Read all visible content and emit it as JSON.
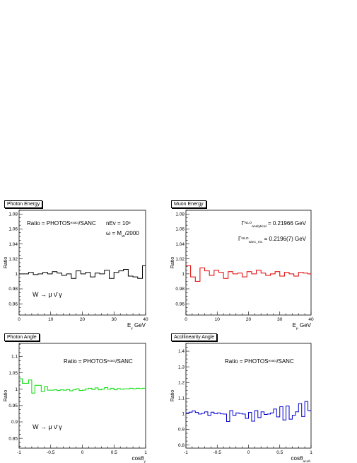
{
  "chart_data": [
    {
      "type": "line",
      "title": "Photon Energy",
      "xlabel": "E",
      "xlabel_sub": "γ",
      "xlabel_unit": " GeV",
      "ylabel": "Ratio",
      "xlim": [
        0,
        40
      ],
      "ylim": [
        0.945,
        1.085
      ],
      "xticks": [
        0,
        10,
        20,
        30,
        40
      ],
      "xtick_labels": [
        "0",
        "10",
        "20",
        "30",
        "40"
      ],
      "yticks": [
        0.96,
        0.98,
        1.0,
        1.02,
        1.04,
        1.06,
        1.08
      ],
      "ytick_labels": [
        "0.96",
        "0.98",
        "1",
        "1.02",
        "1.04",
        "1.06",
        "1.08"
      ],
      "color": "#000000",
      "bin_edges": [
        0,
        1.5,
        3,
        4.5,
        6,
        7.5,
        9,
        10.5,
        12,
        13.5,
        15,
        16.5,
        18,
        19.5,
        21,
        22.5,
        24,
        25.5,
        27,
        28.5,
        30,
        31.5,
        33,
        34.5,
        36,
        37.5,
        39,
        40
      ],
      "values": [
        1.0,
        1.0,
        1.002,
        0.999,
        1.0,
        1.002,
        1.0,
        1.003,
        1.001,
        0.998,
        1.0,
        0.994,
        1.004,
        1.0,
        1.002,
        0.996,
        1.001,
        1.0,
        1.005,
        0.994,
        1.002,
        1.004,
        1.006,
        0.997,
        0.996,
        0.994,
        1.011
      ],
      "annotations": [
        {
          "parts": [
            {
              "t": "Ratio = PHOTOS"
            },
            {
              "t": "exact",
              "sup": true
            },
            {
              "t": "/SANC"
            }
          ]
        },
        {
          "parts": [
            {
              "t": "nEv = 10"
            },
            {
              "t": "8",
              "sup": true
            }
          ]
        },
        {
          "parts": [
            {
              "t": "ω = M"
            },
            {
              "t": "W",
              "sub": true
            },
            {
              "t": "/2000"
            }
          ]
        },
        {
          "parts": [
            {
              "t": "W → μ ν̄ γ"
            }
          ]
        }
      ]
    },
    {
      "type": "line",
      "title": "Muon Energy",
      "xlabel": "E",
      "xlabel_sub": "μ",
      "xlabel_unit": " GeV",
      "ylabel": "Ratio",
      "xlim": [
        0,
        40
      ],
      "ylim": [
        0.945,
        1.085
      ],
      "xticks": [
        0,
        10,
        20,
        30,
        40
      ],
      "xtick_labels": [
        "0",
        "10",
        "20",
        "30",
        "40"
      ],
      "yticks": [
        0.96,
        0.98,
        1.0,
        1.02,
        1.04,
        1.06,
        1.08
      ],
      "ytick_labels": [
        "0.96",
        "0.98",
        "1",
        "1.02",
        "1.04",
        "1.06",
        "1.08"
      ],
      "color": "#e00000",
      "bin_edges": [
        0,
        1.5,
        3,
        4.5,
        6,
        7.5,
        9,
        10.5,
        12,
        13.5,
        15,
        16.5,
        18,
        19.5,
        21,
        22.5,
        24,
        25.5,
        27,
        28.5,
        30,
        31.5,
        33,
        34.5,
        36,
        37.5,
        39,
        40
      ],
      "values": [
        1.011,
        0.996,
        0.99,
        1.008,
        1.004,
        0.998,
        1.005,
        1.002,
        0.994,
        1.003,
        1.0,
        1.001,
        0.996,
        1.003,
        1.0,
        1.005,
        1.001,
        0.998,
        1.0,
        1.003,
        0.997,
        1.002,
        1.0,
        0.997,
        1.002,
        1.001,
        1.0
      ],
      "annotations": [
        {
          "parts": [
            {
              "t": "Γ"
            },
            {
              "t": "NLO",
              "sup": true
            },
            {
              "t": "analytical",
              "sub": true
            },
            {
              "t": " = 0.21966 GeV"
            }
          ]
        },
        {
          "parts": [
            {
              "t": "Γ"
            },
            {
              "t": "NLO",
              "sup": true
            },
            {
              "t": "sanc_mc",
              "sub": true
            },
            {
              "t": " = 0.2196(7) GeV"
            }
          ]
        }
      ]
    },
    {
      "type": "line",
      "title": "Photon Angle",
      "xlabel": "cosθ",
      "xlabel_sub": "γ",
      "xlabel_unit": "",
      "ylabel": "Ratio",
      "xlim": [
        -1,
        1
      ],
      "ylim": [
        0.82,
        1.14
      ],
      "xticks": [
        -1,
        -0.5,
        0,
        0.5,
        1
      ],
      "xtick_labels": [
        "-1",
        "-0.5",
        "0",
        "0.5",
        "1"
      ],
      "yticks": [
        0.85,
        0.9,
        0.95,
        1.0,
        1.05,
        1.1
      ],
      "ytick_labels": [
        "0.85",
        "0.9",
        "0.95",
        "1",
        "1.05",
        "1.1"
      ],
      "color": "#00dd00",
      "bin_edges": [
        -1,
        -0.95,
        -0.9,
        -0.85,
        -0.8,
        -0.75,
        -0.7,
        -0.65,
        -0.6,
        -0.55,
        -0.5,
        -0.45,
        -0.4,
        -0.35,
        -0.3,
        -0.25,
        -0.2,
        -0.15,
        -0.1,
        -0.05,
        0,
        0.05,
        0.1,
        0.15,
        0.2,
        0.25,
        0.3,
        0.35,
        0.4,
        0.45,
        0.5,
        0.55,
        0.6,
        0.65,
        0.7,
        0.75,
        0.8,
        0.85,
        0.9,
        0.95,
        1
      ],
      "values": [
        1.032,
        1.018,
        1.018,
        1.028,
        0.988,
        1.012,
        1.012,
        0.993,
        1.008,
        0.997,
        0.997,
        0.998,
        0.996,
        0.998,
        0.997,
        0.999,
        0.995,
        0.998,
        1.001,
        0.996,
        0.997,
        1.001,
        1.003,
        0.999,
        1.004,
        0.998,
        1.0,
        1.005,
        1.0,
        1.003,
        0.998,
        1.002,
        1.0,
        1.001,
        1.001,
        1.003,
        1.001,
        1.003,
        1.002,
        1.003
      ],
      "annotations": [
        {
          "parts": [
            {
              "t": "Ratio = PHOTOS"
            },
            {
              "t": "exact",
              "sup": true
            },
            {
              "t": "/SANC"
            }
          ]
        },
        {
          "parts": [
            {
              "t": "W → μ ν̄ γ"
            }
          ]
        }
      ]
    },
    {
      "type": "line",
      "title": "Acollinearity Angle",
      "xlabel": "cosθ",
      "xlabel_sub": "acoll.",
      "xlabel_unit": "",
      "ylabel": "Ratio",
      "xlim": [
        -1,
        1
      ],
      "ylim": [
        0.78,
        1.45
      ],
      "xticks": [
        -1,
        -0.5,
        0,
        0.5,
        1
      ],
      "xtick_labels": [
        "-1",
        "-0.5",
        "0",
        "0.5",
        "1"
      ],
      "yticks": [
        0.8,
        0.9,
        1.0,
        1.1,
        1.2,
        1.3,
        1.4
      ],
      "ytick_labels": [
        "0.8",
        "0.9",
        "1",
        "1.1",
        "1.2",
        "1.3",
        "1.4"
      ],
      "color": "#0000cc",
      "bin_edges": [
        -1,
        -0.95,
        -0.9,
        -0.85,
        -0.8,
        -0.75,
        -0.7,
        -0.65,
        -0.6,
        -0.55,
        -0.5,
        -0.45,
        -0.4,
        -0.35,
        -0.3,
        -0.25,
        -0.2,
        -0.15,
        -0.1,
        -0.05,
        0,
        0.05,
        0.1,
        0.15,
        0.2,
        0.25,
        0.3,
        0.35,
        0.4,
        0.45,
        0.5,
        0.55,
        0.6,
        0.65,
        0.7,
        0.75,
        0.8,
        0.85,
        0.9,
        0.95,
        1
      ],
      "values": [
        1.005,
        1.01,
        1.018,
        1.008,
        0.998,
        1.003,
        1.012,
        0.99,
        1.01,
        1.0,
        1.005,
        0.999,
        0.998,
        0.95,
        1.02,
        0.99,
        1.005,
        1.002,
        0.998,
        0.97,
        1.008,
        0.952,
        1.02,
        0.975,
        1.012,
        0.995,
        0.998,
        1.005,
        1.03,
        0.98,
        1.045,
        0.96,
        1.05,
        0.965,
        0.99,
        1.012,
        1.065,
        0.982,
        1.078,
        1.02
      ],
      "annotations": [
        {
          "parts": [
            {
              "t": "Ratio = PHOTOS"
            },
            {
              "t": "exact",
              "sup": true
            },
            {
              "t": "/SANC"
            }
          ]
        }
      ]
    }
  ]
}
